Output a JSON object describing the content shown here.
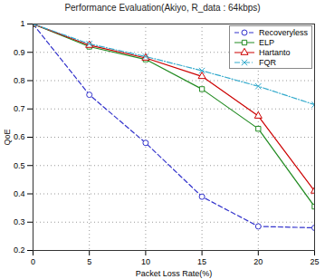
{
  "chart_data": {
    "type": "line",
    "title": "Performance Evaluation(Akiyo, R_data : 64kbps)",
    "x_label": "Packet Loss Rate(%)",
    "y_label": "QoE",
    "x": [
      0,
      5,
      10,
      15,
      20,
      25
    ],
    "series": [
      {
        "name": "Recoveryless",
        "color": "#3333cc",
        "marker": "circle",
        "line_style": "dashed",
        "values": [
          1,
          0.75,
          0.58,
          0.39,
          0.285,
          0.28
        ]
      },
      {
        "name": "ELP",
        "color": "#228b22",
        "marker": "square",
        "line_style": "solid",
        "values": [
          1,
          0.92,
          0.875,
          0.77,
          0.63,
          0.355
        ]
      },
      {
        "name": "Hartanto",
        "color": "#cc0000",
        "marker": "triangle",
        "line_style": "solid",
        "values": [
          1,
          0.925,
          0.88,
          0.815,
          0.675,
          0.41
        ]
      },
      {
        "name": "FQR",
        "color": "#33aacc",
        "marker": "times",
        "line_style": "dashdot",
        "values": [
          1,
          0.93,
          0.885,
          0.835,
          0.78,
          0.715
        ]
      }
    ],
    "xlim": [
      0,
      25
    ],
    "xticks": [
      0,
      5,
      10,
      15,
      20,
      25
    ],
    "ylim": [
      0.2,
      1
    ],
    "yticks": [
      0.2,
      0.3,
      0.4,
      0.5,
      0.6,
      0.7,
      0.8,
      0.9,
      1
    ],
    "grid": true,
    "legend": "top-right"
  }
}
